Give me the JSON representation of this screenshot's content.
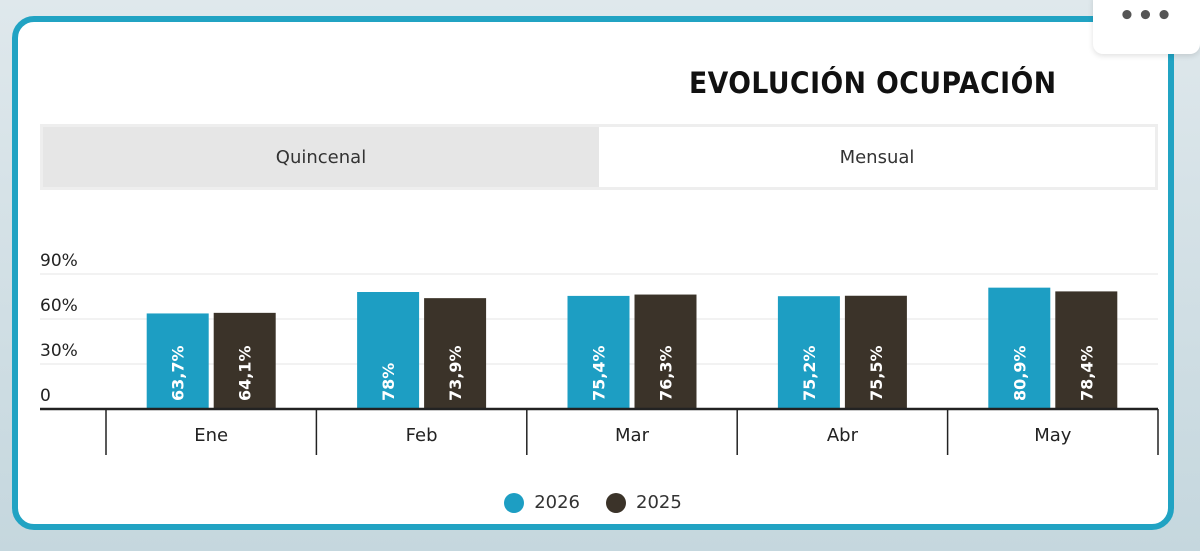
{
  "header": {
    "title": "EVOLUCIÓN OCUPACIÓN",
    "more_icon": "ellipsis-icon",
    "more_glyph": "•••"
  },
  "tabs": [
    {
      "label": "Quincenal",
      "active": false
    },
    {
      "label": "Mensual",
      "active": true
    }
  ],
  "colors": {
    "accent": "#21a3c3",
    "series_2026": "#1d9ec3",
    "series_2025": "#3b3329",
    "axis": "#222222",
    "grid": "#e6e6e6"
  },
  "chart_data": {
    "type": "bar",
    "title": "EVOLUCIÓN OCUPACIÓN",
    "categories": [
      "Ene",
      "Feb",
      "Mar",
      "Abr",
      "May"
    ],
    "series": [
      {
        "name": "2026",
        "values": [
          63.7,
          78,
          75.4,
          75.2,
          80.9
        ],
        "labels": [
          "63,7%",
          "78%",
          "75,4%",
          "75,2%",
          "80,9%"
        ]
      },
      {
        "name": "2025",
        "values": [
          64.1,
          73.9,
          76.3,
          75.5,
          78.4
        ],
        "labels": [
          "64,1%",
          "73,9%",
          "76,3%",
          "75,5%",
          "78,4%"
        ]
      }
    ],
    "yticks": [
      {
        "value": 0,
        "label": "0"
      },
      {
        "value": 30,
        "label": "30%"
      },
      {
        "value": 60,
        "label": "60%"
      },
      {
        "value": 90,
        "label": "90%"
      }
    ],
    "ylim": [
      0,
      90
    ],
    "grid": true,
    "legend_position": "bottom-center"
  }
}
